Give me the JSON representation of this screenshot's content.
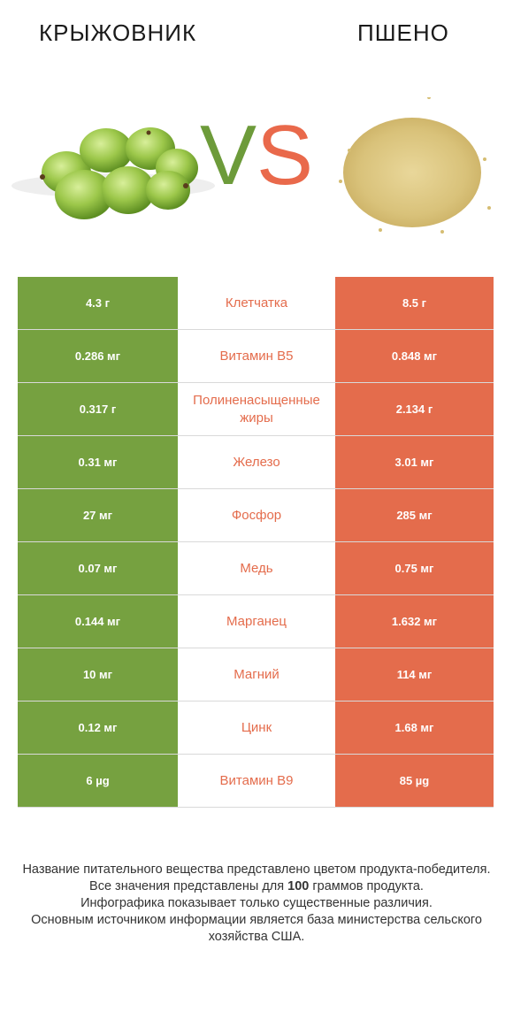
{
  "header": {
    "left_food": "КРЫЖОВНИК",
    "right_food": "ПШЕНО",
    "vs_v": "V",
    "vs_s": "S"
  },
  "colors": {
    "left_accent": "#76a140",
    "right_accent": "#e46c4c"
  },
  "rows": [
    {
      "nutrient": "Клетчатка",
      "left": "4.3 г",
      "right": "8.5 г",
      "winner": "right"
    },
    {
      "nutrient": "Витамин B5",
      "left": "0.286 мг",
      "right": "0.848 мг",
      "winner": "right"
    },
    {
      "nutrient": "Полиненасыщенные жиры",
      "left": "0.317 г",
      "right": "2.134 г",
      "winner": "right"
    },
    {
      "nutrient": "Железо",
      "left": "0.31 мг",
      "right": "3.01 мг",
      "winner": "right"
    },
    {
      "nutrient": "Фосфор",
      "left": "27 мг",
      "right": "285 мг",
      "winner": "right"
    },
    {
      "nutrient": "Медь",
      "left": "0.07 мг",
      "right": "0.75 мг",
      "winner": "right"
    },
    {
      "nutrient": "Марганец",
      "left": "0.144 мг",
      "right": "1.632 мг",
      "winner": "right"
    },
    {
      "nutrient": "Магний",
      "left": "10 мг",
      "right": "114 мг",
      "winner": "right"
    },
    {
      "nutrient": "Цинк",
      "left": "0.12 мг",
      "right": "1.68 мг",
      "winner": "right"
    },
    {
      "nutrient": "Витамин B9",
      "left": "6 µg",
      "right": "85 µg",
      "winner": "right"
    }
  ],
  "footnote": {
    "line1": "Название питательного вещества представлено цветом продукта-победителя.",
    "line2_pre": "Все значения представлены для ",
    "line2_bold": "100",
    "line2_post": " граммов продукта.",
    "line3": "Инфографика показывает только существенные различия.",
    "line4": "Основным источником информации является база министерства сельского хозяйства США."
  }
}
